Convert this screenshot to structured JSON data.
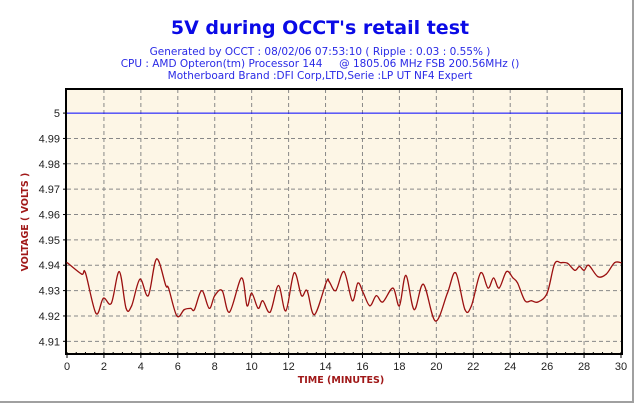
{
  "chart_data": {
    "type": "line",
    "title": "5V during OCCT's retail test",
    "subtitle_lines": [
      "Generated by OCCT : 08/02/06 07:53:10 ( Ripple : 0.03 : 0.55% )",
      "CPU : AMD Opteron(tm) Processor 144     @ 1805.06 MHz FSB 200.56MHz ()",
      "Motherboard Brand :DFI Corp,LTD,Serie :LP UT NF4 Expert"
    ],
    "xlabel": "TIME (MINUTES)",
    "ylabel": "VOLTAGE ( VOLTS )",
    "xlim": [
      0,
      30
    ],
    "ylim": [
      4.905,
      5.0095
    ],
    "x_ticks": [
      "0",
      "2",
      "4",
      "6",
      "8",
      "10",
      "12",
      "14",
      "16",
      "18",
      "20",
      "22",
      "24",
      "26",
      "28",
      "30"
    ],
    "y_ticks": [
      "5",
      "4.99",
      "4.98",
      "4.97",
      "4.96",
      "4.95",
      "4.94",
      "4.93",
      "4.92",
      "4.91"
    ],
    "grid": true,
    "reference_line": {
      "value": 5,
      "color": "#0000ff"
    },
    "series": [
      {
        "name": "5V",
        "color": "#9b1010",
        "x": [
          0,
          0.1,
          0.8,
          1.0,
          1.57,
          1.97,
          2.4,
          2.83,
          3.2,
          3.5,
          3.95,
          4.4,
          4.85,
          5.35,
          5.5,
          5.95,
          6.35,
          6.7,
          6.9,
          7.3,
          7.7,
          8.0,
          8.4,
          8.8,
          9.45,
          9.75,
          10.0,
          10.35,
          10.6,
          11.0,
          11.45,
          11.85,
          12.3,
          12.7,
          13.0,
          13.4,
          14.05,
          14.2,
          14.55,
          15.0,
          15.45,
          15.75,
          16.05,
          16.4,
          16.75,
          17.1,
          17.65,
          18.0,
          18.35,
          18.8,
          19.3,
          19.95,
          20.6,
          21.05,
          21.55,
          21.9,
          22.4,
          22.8,
          23.1,
          23.4,
          23.8,
          24.15,
          24.4,
          24.8,
          25.15,
          25.5,
          26.0,
          26.4,
          26.75,
          27.1,
          27.5,
          27.75,
          28.0,
          28.25,
          28.75,
          29.2,
          29.65,
          30
        ],
        "y": [
          4.941,
          4.9405,
          4.9365,
          4.937,
          4.921,
          4.927,
          4.925,
          4.9375,
          4.923,
          4.924,
          4.9345,
          4.928,
          4.9425,
          4.932,
          4.931,
          4.92,
          4.9225,
          4.923,
          4.9225,
          4.93,
          4.923,
          4.928,
          4.93,
          4.9215,
          4.935,
          4.924,
          4.929,
          4.923,
          4.926,
          4.9215,
          4.932,
          4.922,
          4.937,
          4.928,
          4.93,
          4.9205,
          4.9335,
          4.9335,
          4.93,
          4.9375,
          4.926,
          4.933,
          4.929,
          4.924,
          4.928,
          4.9255,
          4.931,
          4.924,
          4.936,
          4.9225,
          4.9325,
          4.918,
          4.929,
          4.937,
          4.9225,
          4.924,
          4.937,
          4.931,
          4.935,
          4.931,
          4.9375,
          4.935,
          4.933,
          4.926,
          4.926,
          4.9255,
          4.929,
          4.9405,
          4.941,
          4.9408,
          4.938,
          4.9395,
          4.938,
          4.94,
          4.9355,
          4.9365,
          4.941,
          4.941
        ]
      }
    ]
  }
}
